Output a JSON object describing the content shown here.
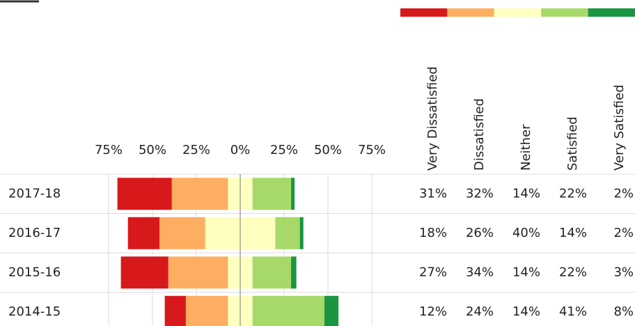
{
  "chart_data": {
    "type": "diverging-bar",
    "categories": [
      "2017-18",
      "2016-17",
      "2015-16",
      "2014-15"
    ],
    "series": [
      {
        "name": "Very Dissatisfied",
        "color": "#d7191c",
        "values": [
          31,
          18,
          27,
          12
        ],
        "value_labels": [
          "31%",
          "18%",
          "27%",
          "12%"
        ]
      },
      {
        "name": "Dissatisfied",
        "color": "#fdae61",
        "values": [
          32,
          26,
          34,
          24
        ],
        "value_labels": [
          "32%",
          "26%",
          "34%",
          "24%"
        ]
      },
      {
        "name": "Neither",
        "color": "#ffffbf",
        "values": [
          14,
          40,
          14,
          14
        ],
        "value_labels": [
          "14%",
          "40%",
          "14%",
          "14%"
        ]
      },
      {
        "name": "Satisfied",
        "color": "#a6d96a",
        "values": [
          22,
          14,
          22,
          41
        ],
        "value_labels": [
          "22%",
          "14%",
          "22%",
          "41%"
        ]
      },
      {
        "name": "Very Satisfied",
        "color": "#1a9641",
        "values": [
          2,
          2,
          3,
          8
        ],
        "value_labels": [
          "2%",
          "2%",
          "3%",
          "8%"
        ]
      }
    ],
    "xlim": [
      -75,
      75
    ],
    "xticks": [
      {
        "value": -75,
        "label": "75%"
      },
      {
        "value": -50,
        "label": "50%"
      },
      {
        "value": -25,
        "label": "25%"
      },
      {
        "value": 0,
        "label": "0%"
      },
      {
        "value": 25,
        "label": "25%"
      },
      {
        "value": 50,
        "label": "50%"
      },
      {
        "value": 75,
        "label": "75%"
      }
    ],
    "grid": true
  }
}
